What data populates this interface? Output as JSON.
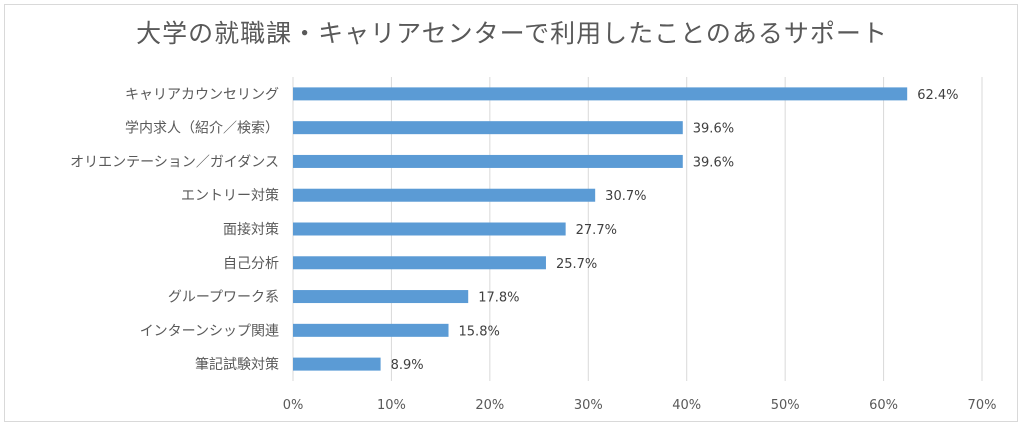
{
  "chart_data": {
    "type": "bar",
    "orientation": "horizontal",
    "title": "大学の就職課・キャリアセンターで利用したことのあるサポート",
    "categories": [
      "キャリアカウンセリング",
      "学内求人（紹介／検索）",
      "オリエンテーション／ガイダンス",
      "エントリー対策",
      "面接対策",
      "自己分析",
      "グループワーク系",
      "インターンシップ関連",
      "筆記試験対策"
    ],
    "values": [
      62.4,
      39.6,
      39.6,
      30.7,
      27.7,
      25.7,
      17.8,
      15.8,
      8.9
    ],
    "data_labels": [
      "62.4%",
      "39.6%",
      "39.6%",
      "30.7%",
      "27.7%",
      "25.7%",
      "17.8%",
      "15.8%",
      "8.9%"
    ],
    "xlim": [
      0,
      70
    ],
    "xticks": [
      "0%",
      "10%",
      "20%",
      "30%",
      "40%",
      "50%",
      "60%",
      "70%"
    ],
    "xlabel": "",
    "ylabel": "",
    "grid": true,
    "bar_color": "#5b9bd5",
    "grid_color": "#d9d9d9"
  }
}
